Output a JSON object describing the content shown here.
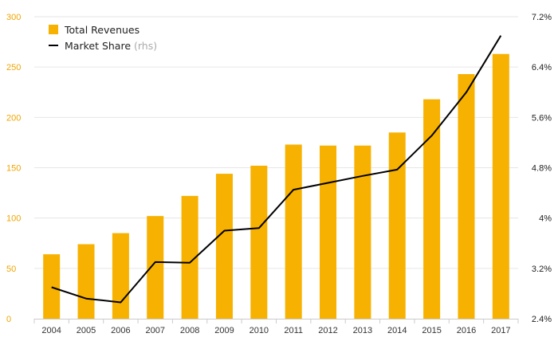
{
  "colors": {
    "bar": "#F7B100",
    "line": "#000000",
    "left_axis_text": "#F0A500",
    "right_axis_text": "#222222",
    "grid": "#e6e6e6",
    "tick_text": "#333333"
  },
  "chart_data": {
    "type": "bar",
    "title": "",
    "categories": [
      "2004",
      "2005",
      "2006",
      "2007",
      "2008",
      "2009",
      "2010",
      "2011",
      "2012",
      "2013",
      "2014",
      "2015",
      "2016",
      "2017"
    ],
    "series": [
      {
        "name": "Total Revenues",
        "kind": "bar",
        "axis": "left",
        "values": [
          64,
          74,
          85,
          102,
          122,
          144,
          152,
          173,
          172,
          172,
          185,
          218,
          243,
          263
        ]
      },
      {
        "name": "Market Share",
        "name_note": "(rhs)",
        "kind": "line",
        "axis": "right",
        "values": [
          2.9,
          2.72,
          2.66,
          3.3,
          3.29,
          3.8,
          3.84,
          4.45,
          4.56,
          4.67,
          4.77,
          5.31,
          6.0,
          6.9
        ]
      }
    ],
    "y_left": {
      "ylim": [
        0,
        300
      ],
      "ticks": [
        0,
        50,
        100,
        150,
        200,
        250,
        300
      ],
      "tick_labels": [
        "0",
        "50",
        "100",
        "150",
        "200",
        "250",
        "300"
      ]
    },
    "y_right": {
      "ylim": [
        2.4,
        7.2
      ],
      "ticks": [
        2.4,
        3.2,
        4.0,
        4.8,
        5.6,
        6.4,
        7.2
      ],
      "tick_labels": [
        "2.4%",
        "3.2%",
        "4%",
        "4.8%",
        "5.6%",
        "6.4%",
        "7.2%"
      ]
    },
    "legend_position": "top-left",
    "grid": true
  }
}
